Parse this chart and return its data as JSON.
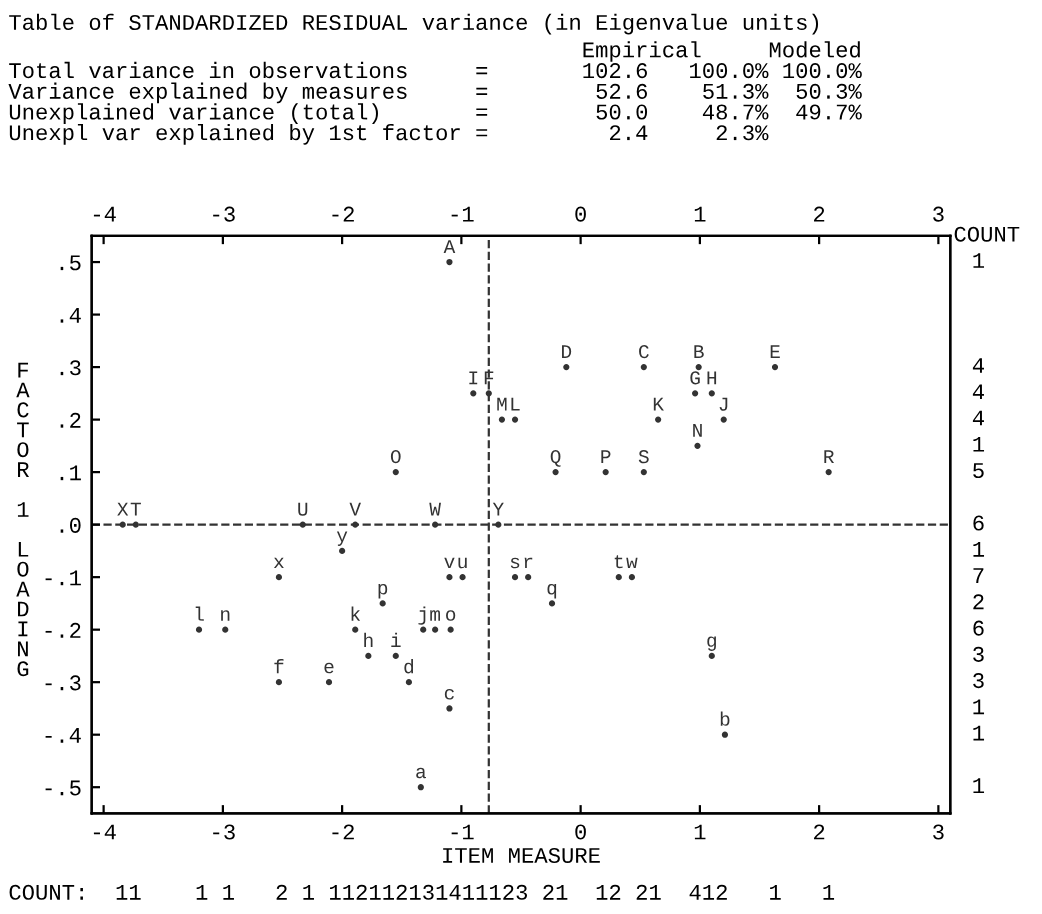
{
  "chart_data": {
    "type": "scatter",
    "title": "Table of STANDARDIZED RESIDUAL variance (in Eigenvalue units)",
    "subtitle": "                                           Empirical     Modeled\nTotal variance in observations     =       102.6   100.0% 100.0%\nVariance explained by measures     =        52.6    51.3%  50.3%\nUnexplained variance (total)       =        50.0    48.7%  49.7%\nUnexpl var explained by 1st factor =         2.4     2.3%",
    "xlabel": "ITEM MEASURE",
    "ylabel": "FACTOR 1 LOADING",
    "series": [
      {
        "color": "#333333",
        "x": [
          -1.1,
          -0.12,
          0.53,
          0.99,
          1.63,
          -0.9,
          -0.77,
          0.96,
          1.1,
          -0.66,
          -0.55,
          0.65,
          1.2,
          0.98,
          -1.55,
          -0.21,
          0.21,
          0.53,
          2.08,
          -3.84,
          -3.73,
          -2.33,
          -1.89,
          -1.22,
          -0.69,
          -2.0,
          -2.53,
          -1.1,
          -0.99,
          -0.55,
          -0.44,
          0.32,
          0.43,
          -1.66,
          -0.24,
          -3.2,
          -2.98,
          -1.89,
          -1.32,
          -1.22,
          -1.09,
          -1.78,
          -1.55,
          1.1,
          -2.53,
          -2.11,
          -1.44,
          -1.1,
          1.21,
          -1.34
        ],
        "values": [
          0.5,
          0.3,
          0.3,
          0.3,
          0.3,
          0.25,
          0.25,
          0.25,
          0.25,
          0.2,
          0.2,
          0.2,
          0.2,
          0.15,
          0.1,
          0.1,
          0.1,
          0.1,
          0.1,
          0.0,
          0.0,
          0.0,
          0.0,
          0.0,
          0.0,
          -0.05,
          -0.1,
          -0.1,
          -0.1,
          -0.1,
          -0.1,
          -0.1,
          -0.1,
          -0.15,
          -0.15,
          -0.2,
          -0.2,
          -0.2,
          -0.2,
          -0.2,
          -0.2,
          -0.25,
          -0.25,
          -0.25,
          -0.3,
          -0.3,
          -0.3,
          -0.35,
          -0.4,
          -0.5
        ],
        "value_labels": [
          "A",
          "D",
          "C",
          "B",
          "E",
          "I",
          "F",
          "G",
          "H",
          "M",
          "L",
          "K",
          "J",
          "N",
          "O",
          "Q",
          "P",
          "S",
          "R",
          "X",
          "T",
          "U",
          "V",
          "W",
          "Y",
          "y",
          "x",
          "v",
          "u",
          "s",
          "r",
          "t",
          "w",
          "p",
          "q",
          "l",
          "n",
          "k",
          "j",
          "m",
          "o",
          "h",
          "i",
          "g",
          "f",
          "e",
          "d",
          "c",
          "b",
          "a"
        ]
      }
    ],
    "marker": "circle",
    "grid": false,
    "xlim": [
      -4.1,
      3.1
    ],
    "xticks": [
      -4,
      -3,
      -2,
      -1,
      0,
      1,
      2,
      3
    ],
    "x2lim": [
      -4.1,
      3.1
    ],
    "x2ticks": [
      -4,
      -3,
      -2,
      -1,
      0,
      1,
      2,
      3
    ],
    "ylim": [
      -0.55,
      0.55
    ],
    "yticks": [
      {
        "value": 0.5,
        "label": ".5"
      },
      {
        "value": 0.4,
        "label": ".4"
      },
      {
        "value": 0.3,
        "label": ".3"
      },
      {
        "value": 0.2,
        "label": ".2"
      },
      {
        "value": 0.1,
        "label": ".1"
      },
      {
        "value": 0.0,
        "label": ".0"
      },
      {
        "value": -0.1,
        "label": "-.1"
      },
      {
        "value": -0.2,
        "label": "-.2"
      },
      {
        "value": -0.3,
        "label": "-.3"
      },
      {
        "value": -0.4,
        "label": "-.4"
      },
      {
        "value": -0.5,
        "label": "-.5"
      }
    ],
    "ref_lines": [
      {
        "axis": "y",
        "value": 0.0,
        "line_style": "dashed"
      },
      {
        "axis": "x",
        "value": -0.77,
        "line_style": "dashed"
      }
    ],
    "annotations": [
      "COUNT",
      "1\n\n\n\n4\n4\n4\n1\n5\n\n6\n1\n7\n2\n6\n3\n3\n1\n1\n\n1",
      "COUNT:  11    1 1   2 1 112112131411123 21  12 21  412   1   1"
    ]
  }
}
